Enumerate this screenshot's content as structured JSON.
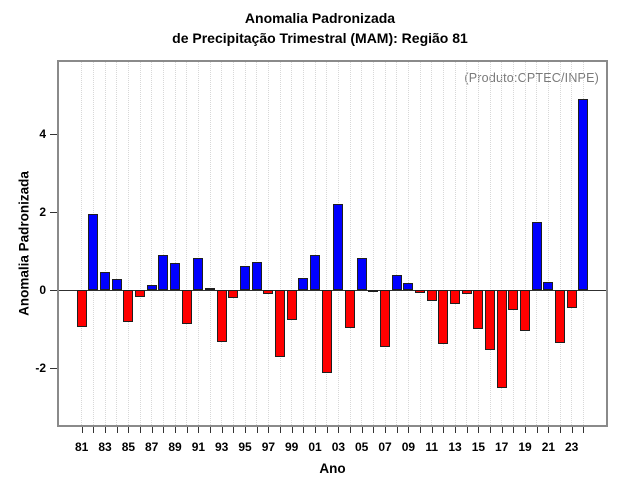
{
  "title": {
    "line1": "Anomalia Padronizada",
    "line2": "de Precipitação Trimestral (MAM): Região 81"
  },
  "annotation": "(Produto:CPTEC/INPE)",
  "axes": {
    "xlabel": "Ano",
    "ylabel": "Anomalia Padronizada"
  },
  "colors": {
    "positive_bar": "#0000ff",
    "negative_bar": "#ff0000",
    "bar_border": "#1f1f1f",
    "frame": "#8a8a8a",
    "gridline": "#d8d8d8",
    "annotation_text": "#7a7a7a",
    "text": "#000000"
  },
  "chart_data": {
    "type": "bar",
    "title": "Anomalia Padronizada de Precipitação Trimestral (MAM): Região 81",
    "xlabel": "Ano",
    "ylabel": "Anomalia Padronizada",
    "years": [
      1981,
      1982,
      1983,
      1984,
      1985,
      1986,
      1987,
      1988,
      1989,
      1990,
      1991,
      1992,
      1993,
      1994,
      1995,
      1996,
      1997,
      1998,
      1999,
      2000,
      2001,
      2002,
      2003,
      2004,
      2005,
      2006,
      2007,
      2008,
      2009,
      2010,
      2011,
      2012,
      2013,
      2014,
      2015,
      2016,
      2017,
      2018,
      2019,
      2020,
      2021,
      2022,
      2023,
      2024
    ],
    "values": [
      -0.94,
      1.95,
      0.47,
      0.27,
      -0.83,
      -0.19,
      0.13,
      0.9,
      0.7,
      -0.88,
      0.81,
      0.06,
      -1.33,
      -0.21,
      0.62,
      0.73,
      -0.11,
      -1.73,
      -0.77,
      0.32,
      0.9,
      -2.12,
      2.21,
      -0.98,
      0.82,
      -0.05,
      -1.45,
      0.38,
      0.17,
      -0.08,
      -0.28,
      -1.38,
      -0.37,
      -0.1,
      -1.01,
      -1.54,
      -2.5,
      -0.51,
      -1.05,
      1.74,
      0.21,
      -1.35,
      -0.47,
      4.91
    ],
    "xtick_labels": [
      "81",
      "83",
      "85",
      "87",
      "89",
      "91",
      "93",
      "95",
      "97",
      "99",
      "01",
      "03",
      "05",
      "07",
      "09",
      "11",
      "13",
      "15",
      "17",
      "19",
      "21",
      "23"
    ],
    "yticks": [
      -2,
      0,
      2,
      4
    ],
    "ylim": [
      -3.5,
      5.9
    ],
    "grid": "vertical dotted, one per year",
    "legend": "none",
    "zero_line": true,
    "annotation": "(Produto:CPTEC/INPE)"
  }
}
